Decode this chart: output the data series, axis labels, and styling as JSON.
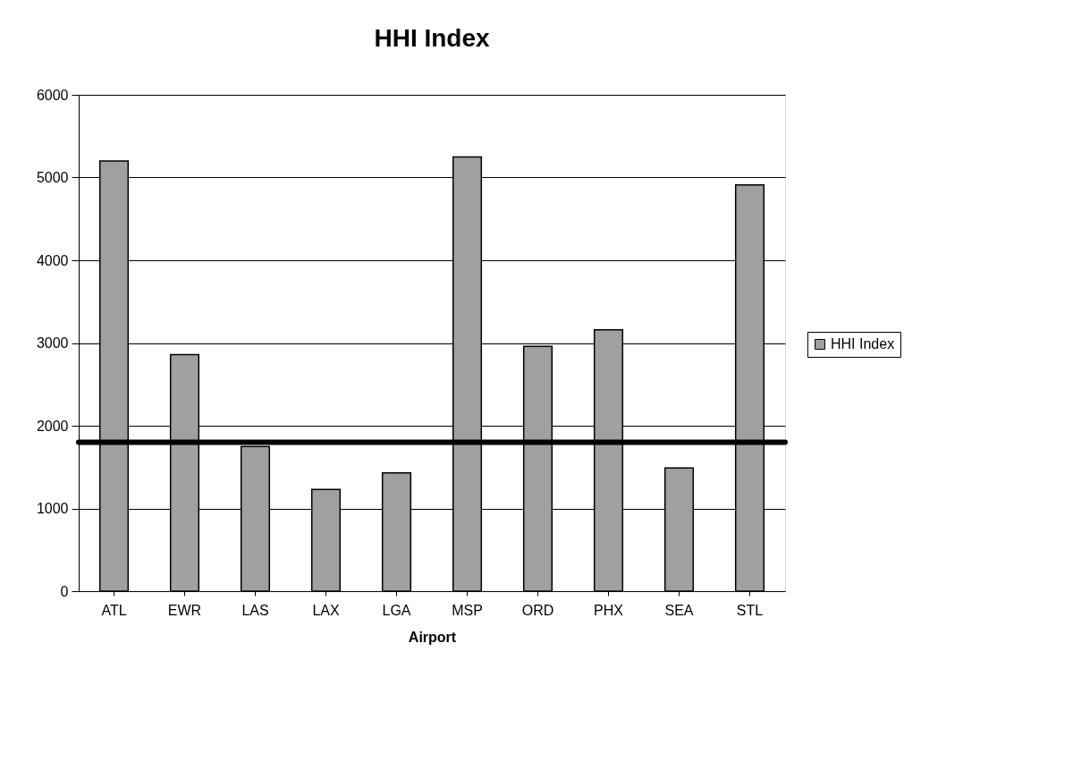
{
  "chart_data": {
    "type": "bar",
    "title": "HHI Index",
    "xlabel": "Airport",
    "categories": [
      "ATL",
      "EWR",
      "LAS",
      "LAX",
      "LGA",
      "MSP",
      "ORD",
      "PHX",
      "SEA",
      "STL"
    ],
    "series": [
      {
        "name": "HHI Index",
        "color": "#a0a0a0",
        "values": [
          5200,
          2860,
          1750,
          1230,
          1430,
          5250,
          2960,
          3160,
          1490,
          4910
        ]
      }
    ],
    "ylim": [
      0,
      6000
    ],
    "yticks": [
      0,
      1000,
      2000,
      3000,
      4000,
      5000,
      6000
    ],
    "ref_lines": [
      {
        "axis": "y",
        "value": 1800,
        "color": "#000000"
      }
    ],
    "grid": "y",
    "legend": "right"
  }
}
